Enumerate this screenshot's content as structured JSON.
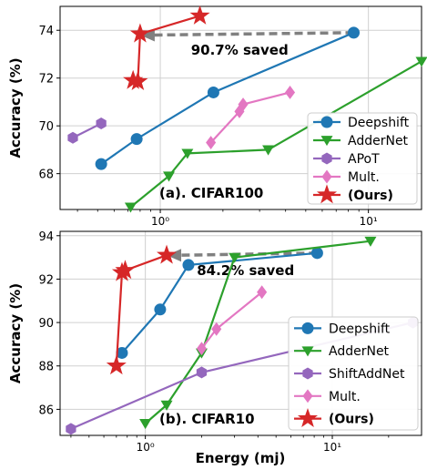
{
  "xlabel": "Energy (mj)",
  "colors": {
    "Deepshift": "#1f77b4",
    "AdderNet": "#2ca02c",
    "APoT": "#9467bd",
    "ShiftAddNet": "#9467bd",
    "Mult.": "#e377c2",
    "(Ours)": "#d62728",
    "arrow": "#808080"
  },
  "chart_data": [
    {
      "type": "line",
      "panel_label": "(a). CIFAR100",
      "ylabel": "Accuracy (%)",
      "xscale": "log",
      "xlim": [
        0.33,
        18.0
      ],
      "ylim": [
        66.5,
        75.0
      ],
      "yticks": [
        68,
        70,
        72,
        74
      ],
      "xticks": [
        {
          "value": 1,
          "label": "10⁰"
        },
        {
          "value": 10,
          "label": "10¹"
        }
      ],
      "grid": true,
      "legend_position": "bottom-right",
      "annotation": {
        "text": "90.7% saved",
        "from": [
          8.5,
          73.9
        ],
        "to": [
          0.8,
          73.8
        ]
      },
      "series": [
        {
          "name": "Deepshift",
          "marker": "circle",
          "x": [
            0.52,
            0.77,
            1.8,
            8.5
          ],
          "y": [
            68.4,
            69.45,
            71.4,
            73.9
          ]
        },
        {
          "name": "AdderNet",
          "marker": "triangle-down",
          "x": [
            0.72,
            1.1,
            1.35,
            3.3,
            18.0
          ],
          "y": [
            66.6,
            67.9,
            68.85,
            69.0,
            72.7
          ]
        },
        {
          "name": "APoT",
          "marker": "hexagon",
          "x": [
            0.38,
            0.52
          ],
          "y": [
            69.5,
            70.1
          ]
        },
        {
          "name": "Mult.",
          "marker": "diamond",
          "x": [
            1.75,
            2.4,
            2.5,
            4.2
          ],
          "y": [
            69.3,
            70.6,
            70.9,
            71.4
          ]
        },
        {
          "name": "(Ours)",
          "marker": "star",
          "x": [
            0.74,
            0.78,
            0.8,
            1.55
          ],
          "y": [
            71.9,
            71.85,
            73.85,
            74.6
          ]
        }
      ]
    },
    {
      "type": "line",
      "panel_label": "(b). CIFAR10",
      "ylabel": "Accuracy (%)",
      "xscale": "log",
      "xlim": [
        0.35,
        30.0
      ],
      "ylim": [
        84.8,
        94.2
      ],
      "yticks": [
        86,
        88,
        90,
        92,
        94
      ],
      "xticks": [
        {
          "value": 1,
          "label": "10⁰"
        },
        {
          "value": 10,
          "label": "10¹"
        }
      ],
      "grid": true,
      "legend_position": "bottom-right",
      "annotation": {
        "text": "84.2% saved",
        "from": [
          8.3,
          93.2
        ],
        "to": [
          1.3,
          93.1
        ]
      },
      "series": [
        {
          "name": "Deepshift",
          "marker": "circle",
          "x": [
            0.75,
            1.2,
            1.7,
            8.3
          ],
          "y": [
            88.6,
            90.6,
            92.65,
            93.2
          ]
        },
        {
          "name": "AdderNet",
          "marker": "triangle-down",
          "x": [
            1.0,
            1.3,
            2.0,
            3.0,
            16.0
          ],
          "y": [
            85.35,
            86.2,
            88.6,
            93.0,
            93.75
          ]
        },
        {
          "name": "ShiftAddNet",
          "marker": "hexagon",
          "x": [
            0.4,
            2.0,
            27.0
          ],
          "y": [
            85.1,
            87.7,
            90.0
          ]
        },
        {
          "name": "Mult.",
          "marker": "diamond",
          "x": [
            2.0,
            2.4,
            4.2
          ],
          "y": [
            88.8,
            89.7,
            91.4
          ]
        },
        {
          "name": "(Ours)",
          "marker": "star",
          "x": [
            0.7,
            0.75,
            0.78,
            1.3
          ],
          "y": [
            88.0,
            92.3,
            92.4,
            93.1
          ]
        }
      ]
    }
  ]
}
